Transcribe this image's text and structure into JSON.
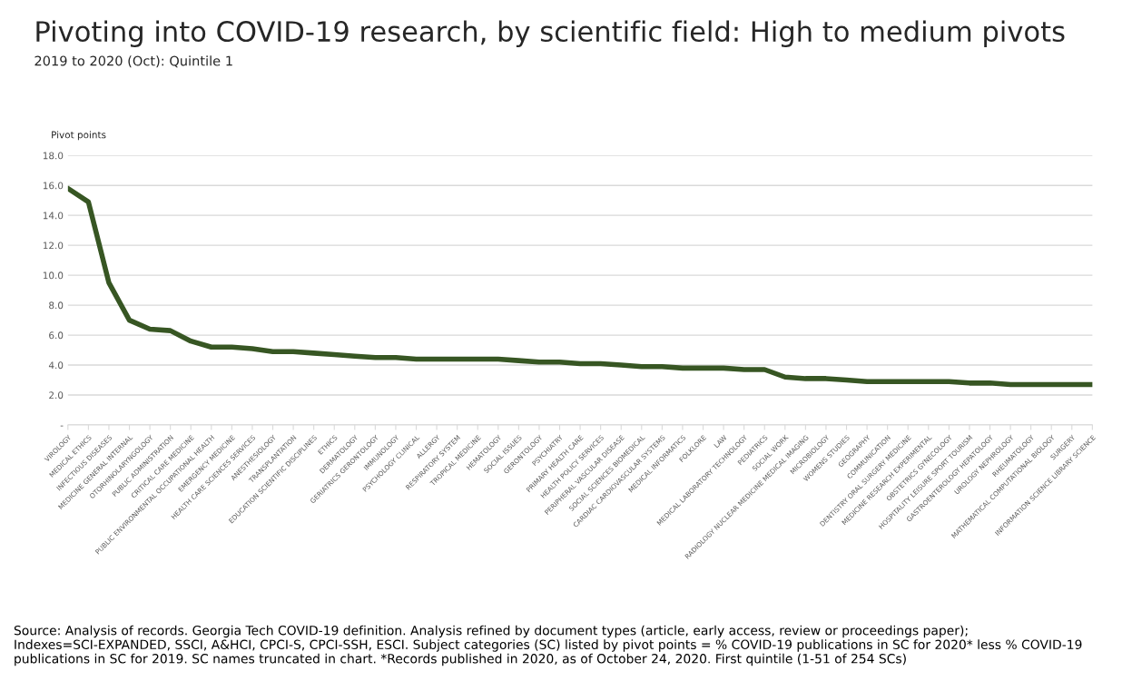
{
  "chart_data": {
    "type": "line",
    "title": "Pivoting into COVID-19 research, by scientific field: High to medium pivots",
    "subtitle": "2019 to 2020 (Oct): Quintile 1",
    "ylabel": "Pivot points",
    "categories": [
      "VIROLOGY",
      "MEDICAL ETHICS",
      "INFECTIOUS DISEASES",
      "MEDICINE GENERAL INTERNAL",
      "OTORHINOLARYNGOLOGY",
      "PUBLIC ADMINISTRATION",
      "CRITICAL CARE MEDICINE",
      "PUBLIC ENVIRONMENTAL OCCUPATIONAL HEALTH",
      "EMERGENCY MEDICINE",
      "HEALTH CARE SCIENCES SERVICES",
      "ANESTHESIOLOGY",
      "TRANSPLANTATION",
      "EDUCATION SCIENTIFIC DISCIPLINES",
      "ETHICS",
      "DERMATOLOGY",
      "GERIATRICS GERONTOLOGY",
      "IMMUNOLOGY",
      "PSYCHOLOGY CLINICAL",
      "ALLERGY",
      "RESPIRATORY SYSTEM",
      "TROPICAL MEDICINE",
      "HEMATOLOGY",
      "SOCIAL ISSUES",
      "GERONTOLOGY",
      "PSYCHIATRY",
      "PRIMARY HEALTH CARE",
      "HEALTH POLICY SERVICES",
      "PERIPHERAL VASCULAR DISEASE",
      "SOCIAL SCIENCES BIOMEDICAL",
      "CARDIAC CARDIOVASCULAR SYSTEMS",
      "MEDICAL INFORMATICS",
      "FOLKLORE",
      "LAW",
      "MEDICAL LABORATORY TECHNOLOGY",
      "PEDIATRICS",
      "SOCIAL WORK",
      "RADIOLOGY NUCLEAR MEDICINE MEDICAL IMAGING",
      "MICROBIOLOGY",
      "WOMENS STUDIES",
      "GEOGRAPHY",
      "COMMUNICATION",
      "DENTISTRY ORAL SURGERY MEDICINE",
      "MEDICINE RESEARCH EXPERIMENTAL",
      "OBSTETRICS GYNECOLOGY",
      "HOSPITALITY LEISURE SPORT TOURISM",
      "GASTROENTEROLOGY HEPATOLOGY",
      "UROLOGY NEPHROLOGY",
      "RHEUMATOLOGY",
      "MATHEMATICAL COMPUTATIONAL BIOLOGY",
      "SURGERY",
      "INFORMATION SCIENCE LIBRARY SCIENCE"
    ],
    "series": [
      {
        "color": "#375623",
        "values": [
          15.8,
          14.9,
          9.5,
          7.0,
          6.4,
          6.3,
          5.6,
          5.2,
          5.2,
          5.1,
          4.9,
          4.9,
          4.8,
          4.7,
          4.6,
          4.5,
          4.5,
          4.4,
          4.4,
          4.4,
          4.4,
          4.4,
          4.3,
          4.2,
          4.2,
          4.1,
          4.1,
          4.0,
          3.9,
          3.9,
          3.8,
          3.8,
          3.8,
          3.7,
          3.7,
          3.2,
          3.1,
          3.1,
          3.0,
          2.9,
          2.9,
          2.9,
          2.9,
          2.9,
          2.8,
          2.8,
          2.7,
          2.7,
          2.7,
          2.7,
          2.7
        ]
      }
    ],
    "ylim": [
      0,
      18
    ],
    "yticks": [
      {
        "value": 0,
        "label": "-"
      },
      {
        "value": 2,
        "label": "2.0"
      },
      {
        "value": 4,
        "label": "4.0"
      },
      {
        "value": 6,
        "label": "6.0"
      },
      {
        "value": 8,
        "label": "8.0"
      },
      {
        "value": 10,
        "label": "10.0"
      },
      {
        "value": 12,
        "label": "12.0"
      },
      {
        "value": 14,
        "label": "14.0"
      },
      {
        "value": 16,
        "label": "16.0"
      },
      {
        "value": 18,
        "label": "18.0"
      }
    ],
    "grid": "y",
    "marker": "none",
    "line_style": "solid",
    "annotations": [
      "Source: Analysis of records. Georgia Tech COVID-19 definition. Analysis refined by document types (article, early access, review or proceedings paper);  Indexes=SCI-EXPANDED, SSCI, A&HCI, CPCI-S, CPCI-SSH, ESCI. Subject categories (SC) listed by pivot points = % COVID-19 publications in SC for 2020* less % COVID-19 publications in SC for 2019. SC names truncated in chart. *Records published in 2020, as of October 24, 2020. First quintile (1-51 of 254 SCs)"
    ]
  }
}
